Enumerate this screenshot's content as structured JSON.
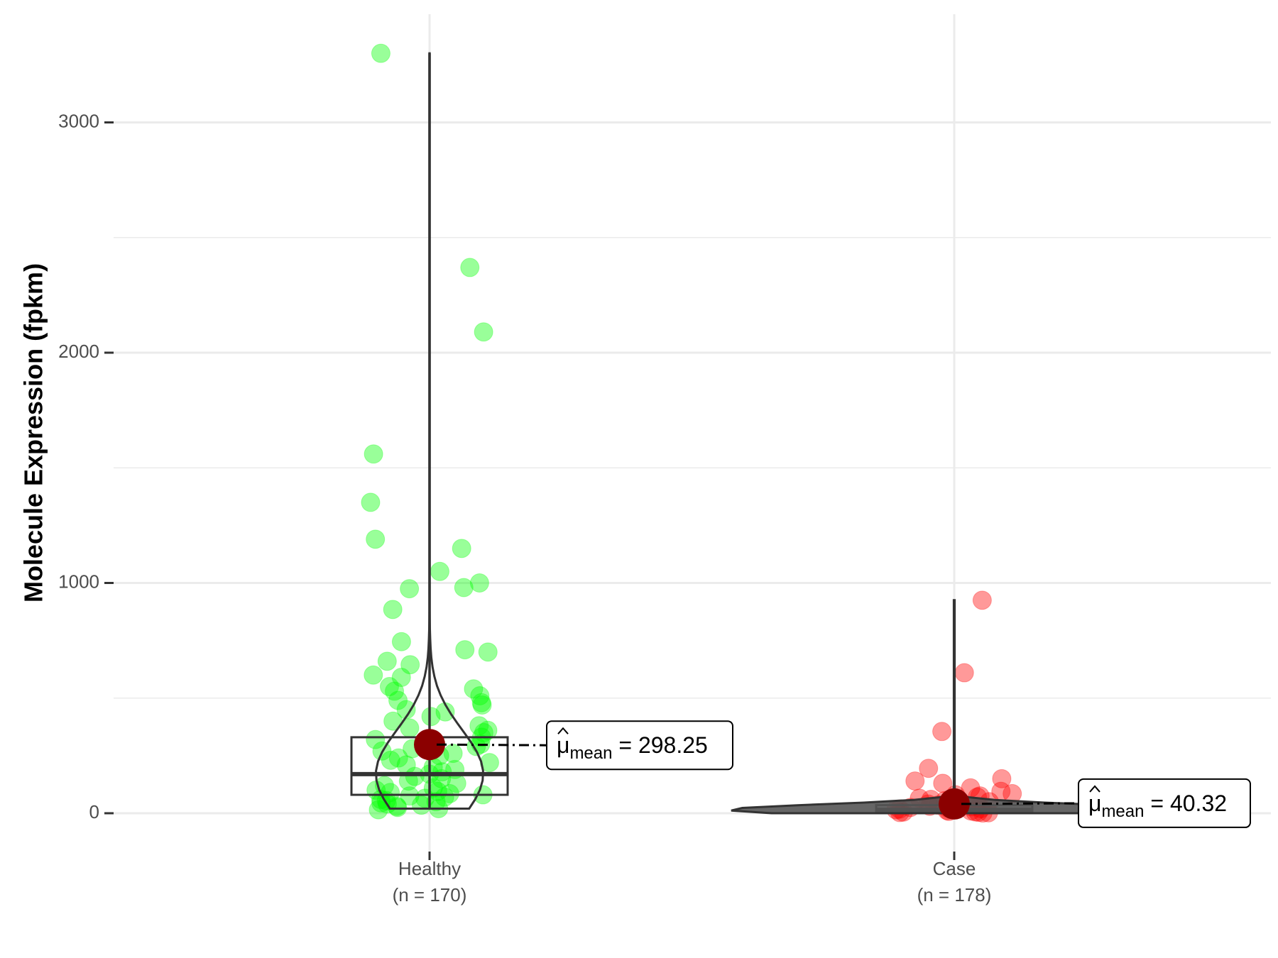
{
  "chart_data": {
    "type": "box-violin-scatter",
    "xlabel": "",
    "ylabel": "Molecule Expression (fpkm)",
    "ylim": [
      -170,
      3400
    ],
    "yticks": [
      0,
      1000,
      2000,
      3000
    ],
    "grid": true,
    "groups": [
      {
        "name": "Healthy",
        "n_label": "(n = 170)",
        "color": "#00ff00",
        "box": {
          "q1": 80,
          "median": 170,
          "q3": 330
        },
        "whisker": {
          "low": 20,
          "high": 3300
        },
        "mean": 298.25,
        "mean_label": "298.25",
        "violin_max_halfwidth_fraction": 0.06,
        "points": [
          3300,
          2370,
          2090,
          1560,
          1350,
          1190,
          1150,
          1050,
          1000,
          980,
          975,
          885,
          745,
          710,
          700,
          660,
          645,
          600,
          590,
          550,
          540,
          530,
          510,
          490,
          480,
          470,
          450,
          440,
          420,
          400,
          380,
          370,
          360,
          350,
          330,
          320,
          300,
          290,
          280,
          270,
          260,
          250,
          240,
          230,
          220,
          210,
          200,
          190,
          180,
          170,
          160,
          150,
          140,
          130,
          120,
          110,
          100,
          95,
          90,
          85,
          80,
          75,
          70,
          65,
          60,
          55,
          50,
          45,
          40,
          35,
          30,
          25,
          20,
          15
        ]
      },
      {
        "name": "Case",
        "n_label": "(n = 178)",
        "color": "#ff0000",
        "box": {
          "q1": 5,
          "median": 15,
          "q3": 35
        },
        "whisker": {
          "low": 0,
          "high": 925
        },
        "mean": 40.32,
        "mean_label": "40.32",
        "violin_max_halfwidth_fraction": 0.25,
        "points": [
          925,
          610,
          355,
          195,
          150,
          140,
          130,
          110,
          95,
          85,
          80,
          75,
          70,
          65,
          60,
          55,
          50,
          45,
          40,
          35,
          30,
          28,
          25,
          22,
          20,
          18,
          15,
          12,
          10,
          8,
          6,
          5,
          4,
          3,
          2,
          1
        ]
      }
    ],
    "mean_symbol": "μ",
    "mean_subscript": "mean",
    "mean_equals": "="
  }
}
